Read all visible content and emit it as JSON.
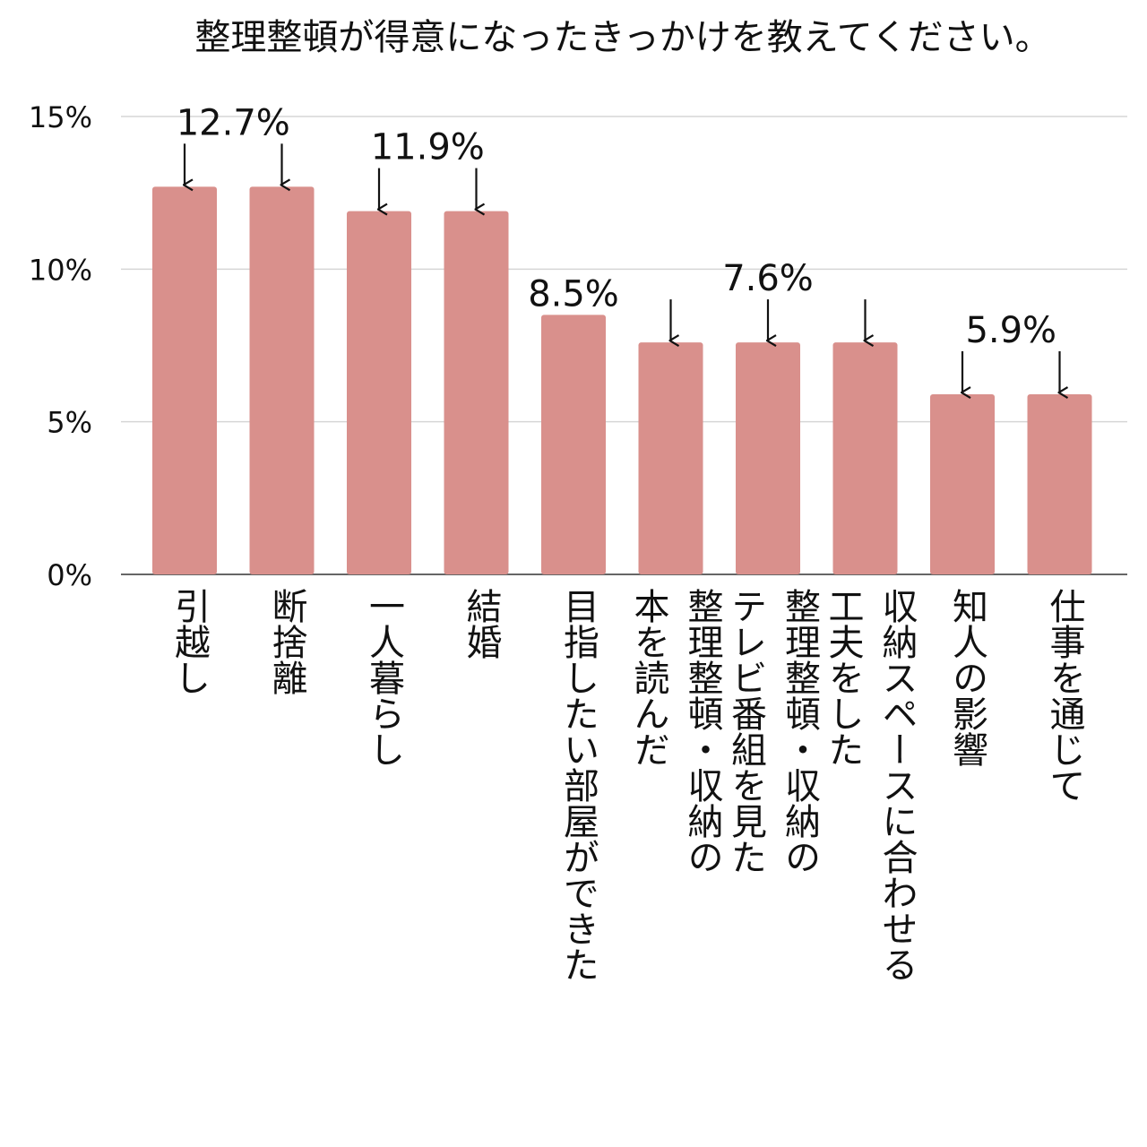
{
  "chart_data": {
    "type": "bar",
    "title": "整理整頓が得意になったきっかけを教えてください。",
    "xlabel": "",
    "ylabel": "",
    "ylim": [
      0,
      15
    ],
    "yticks": [
      0,
      5,
      10,
      15
    ],
    "ytick_labels": [
      "0%",
      "5%",
      "10%",
      "15%"
    ],
    "grid": true,
    "legend": "none",
    "bar_color": "#d9908c",
    "categories": [
      [
        "引越し"
      ],
      [
        "断捨離"
      ],
      [
        "一人暮らし"
      ],
      [
        "結婚"
      ],
      [
        "目指したい部屋ができた"
      ],
      [
        "本を読んだ",
        "整理整頓・収納の"
      ],
      [
        "テレビ番組を見た",
        "整理整頓・収納の"
      ],
      [
        "工夫をした",
        "収納スペースに合わせる"
      ],
      [
        "知人の影響"
      ],
      [
        "仕事を通じて"
      ]
    ],
    "values": [
      12.7,
      12.7,
      11.9,
      11.9,
      8.5,
      7.6,
      7.6,
      7.6,
      5.9,
      5.9
    ],
    "data_labels": [
      {
        "text": "12.7%",
        "bars": [
          0,
          1
        ]
      },
      {
        "text": "11.9%",
        "bars": [
          2,
          3
        ]
      },
      {
        "text": "8.5%",
        "bars": [
          4
        ]
      },
      {
        "text": "7.6%",
        "bars": [
          5,
          6,
          7
        ]
      },
      {
        "text": "5.9%",
        "bars": [
          8,
          9
        ]
      }
    ]
  }
}
